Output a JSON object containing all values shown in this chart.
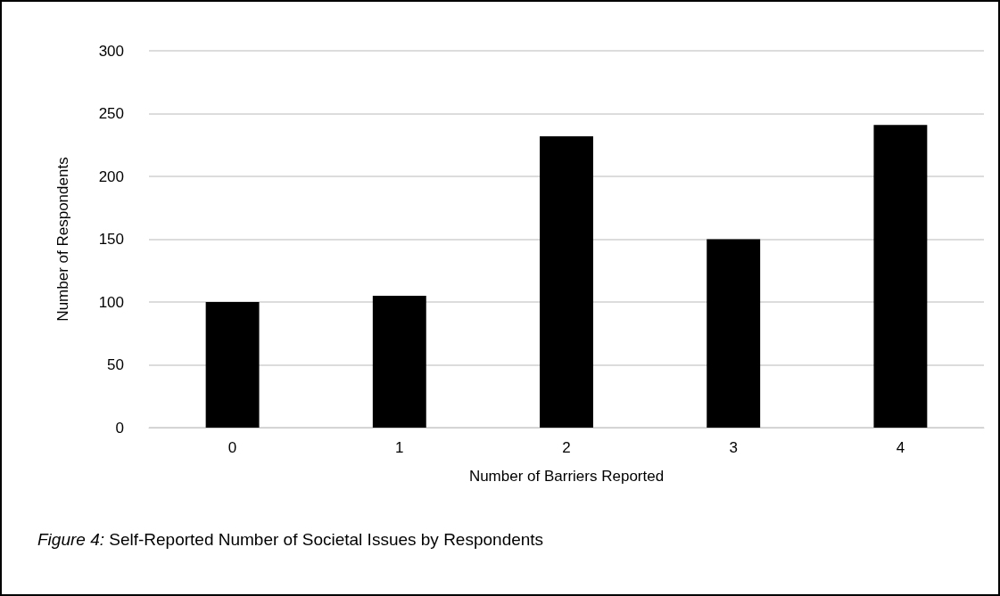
{
  "chart_data": {
    "type": "bar",
    "categories": [
      "0",
      "1",
      "2",
      "3",
      "4"
    ],
    "values": [
      100,
      105,
      232,
      150,
      241
    ],
    "color": "#000000",
    "xlabel": "Number of Barriers Reported",
    "ylabel": "Number of Respondents",
    "ylim": [
      0,
      300
    ],
    "yticks": [
      0,
      50,
      100,
      150,
      200,
      250,
      300
    ],
    "grid": "y",
    "annotations": [
      "Figure 4: Self-Reported Number of Societal Issues by Respondents"
    ]
  }
}
